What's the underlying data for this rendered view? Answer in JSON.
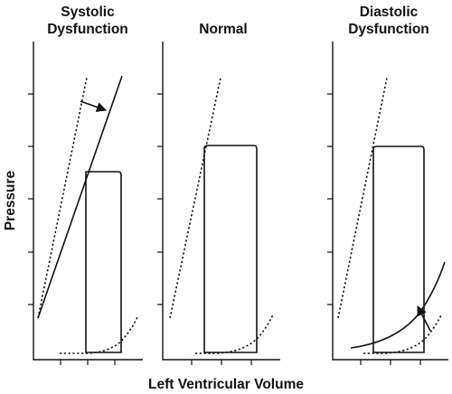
{
  "panels": [
    {
      "id": "systolic",
      "title_lines": [
        "Systolic",
        "Dysfunction"
      ]
    },
    {
      "id": "normal",
      "title_lines": [
        "Normal"
      ]
    },
    {
      "id": "diastolic",
      "title_lines": [
        "Diastolic",
        "Dysfunction"
      ]
    }
  ],
  "axes": {
    "x_label": "Left Ventricular Volume",
    "y_label": "Pressure"
  },
  "colors": {
    "ink": "#111111",
    "background": "#ffffff"
  }
}
